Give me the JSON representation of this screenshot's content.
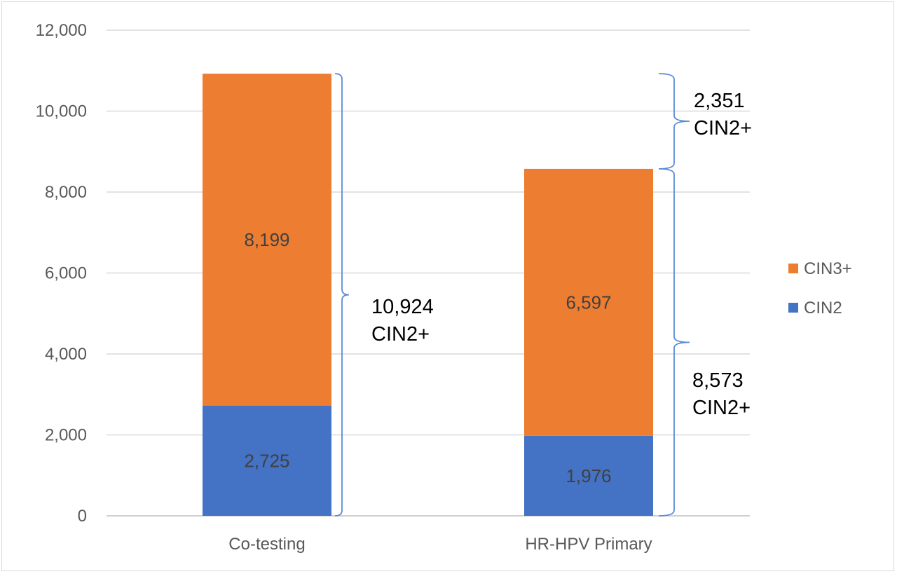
{
  "chart_data": {
    "type": "bar",
    "stacked": true,
    "categories": [
      "Co-testing",
      "HR-HPV Primary"
    ],
    "series": [
      {
        "name": "CIN2",
        "values": [
          2725,
          1976
        ],
        "color": "#4472c4"
      },
      {
        "name": "CIN3+",
        "values": [
          8199,
          6597
        ],
        "color": "#ed7d31"
      }
    ],
    "data_labels": {
      "CIN2": [
        "2,725",
        "1,976"
      ],
      "CIN3+": [
        "8,199",
        "6,597"
      ]
    },
    "ylim": [
      0,
      12000
    ],
    "yticks": [
      0,
      2000,
      4000,
      6000,
      8000,
      10000,
      12000
    ],
    "ytick_labels": [
      "0",
      "2,000",
      "4,000",
      "6,000",
      "8,000",
      "10,000",
      "12,000"
    ],
    "grid": true,
    "legend": {
      "placement": "right",
      "entries": [
        "CIN3+",
        "CIN2"
      ]
    },
    "annotations": [
      {
        "id": "co-testing-total",
        "line1": "10,924",
        "line2": "CIN2+",
        "span": [
          0,
          10924
        ]
      },
      {
        "id": "hrhpv-total",
        "line1": "8,573",
        "line2": "CIN2+",
        "span": [
          0,
          8573
        ]
      },
      {
        "id": "difference",
        "line1": "2,351",
        "line2": "CIN2+",
        "span": [
          8573,
          10924
        ]
      }
    ]
  }
}
